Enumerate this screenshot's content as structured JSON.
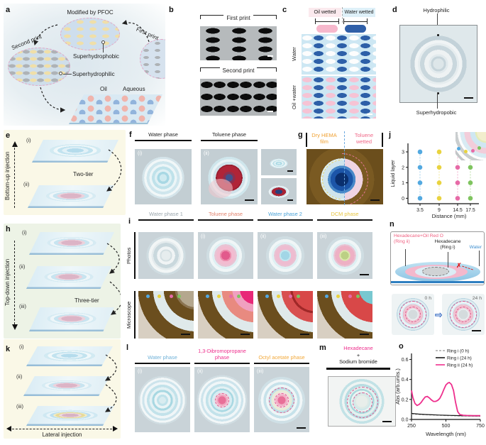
{
  "panel_letters": {
    "a": "a",
    "b": "b",
    "c": "c",
    "d": "d",
    "e": "e",
    "f": "f",
    "g": "g",
    "h": "h",
    "i": "i",
    "j": "j",
    "k": "k",
    "l": "l",
    "m": "m",
    "n": "n",
    "o": "o"
  },
  "steps": {
    "i": "(i)",
    "ii": "(ii)",
    "iii": "(iii)"
  },
  "colors": {
    "magenta": "#ee2f8d",
    "header_gray": "#9ba6ad",
    "header_salmon": "#e2836e",
    "header_blue": "#4ba3d8",
    "header_yellow": "#e7c53e",
    "hema_orange": "#f0a030",
    "toluene_pink": "#f06888",
    "water_blue": "#6fb1d8",
    "octyl_orange": "#f2a93b",
    "ring_pink": "#f06080",
    "n_water_blue": "#4090d0",
    "cross_red": "#e02020",
    "dot_blue": "#53a9e0",
    "dot_yellow": "#e9d33f",
    "dot_pink": "#e76aa7",
    "dot_green": "#7fc45f"
  },
  "a": {
    "modified": "Modified by PFOC",
    "first_print": "First print",
    "second_print": "Second print",
    "superhydrophobic": "Superhydrophobic",
    "superhydrophilic": "Superhydrophilic",
    "oil": "Oil",
    "aqueous": "Aqueous"
  },
  "b": {
    "first_print": "First print",
    "second_print": "Second print"
  },
  "c": {
    "oil_wetted": "Oil wetted",
    "water_wetted": "Water wetted",
    "water": "Water",
    "oil_water": "Oil +water"
  },
  "d": {
    "top": "Hydrophilic",
    "bottom": "Superhydropobic"
  },
  "e": {
    "axis": "Bottom-up injection",
    "tier": "Two-tier"
  },
  "f": {
    "water": "Water phase",
    "toluene": "Toluene phase"
  },
  "g": {
    "left": "Dry HEMA film",
    "right": "Toluene wetted"
  },
  "h": {
    "axis": "Top-down injection",
    "tier": "Three-tier"
  },
  "i": {
    "row1": "Photos",
    "row2": "Microscope",
    "headers": [
      "Water phase 1",
      "Toluene phase",
      "Water phase 2",
      "DCM phase"
    ]
  },
  "n": {
    "ring2_line1": "Hexadecane+Oil Red O",
    "ring2_line2": "(Ring ii)",
    "ring1_line1": "Hexadecane",
    "ring1_line2": "(Ring i)",
    "water": "Water",
    "t0": "0 h",
    "t24": "24 h",
    "blocked_mark": "✗"
  },
  "k": {
    "axis": "Lateral injection"
  },
  "l": {
    "headers": [
      "Water phase",
      "1,3-Dibromopropane phase",
      "Octyl acetate phase"
    ]
  },
  "m": {
    "line1": "Hexadecane",
    "line2": "+",
    "line3": "Sodium bromide"
  },
  "chart_data": [
    {
      "id": "j",
      "type": "scatter",
      "xlabel": "Distance (mm)",
      "ylabel": "Liquid layer",
      "x_ticks": [
        "3.5",
        "9",
        "14.5",
        "17.5"
      ],
      "y_ticks": [
        0,
        1,
        2,
        3
      ],
      "categories": [
        3.5,
        9,
        14.5,
        17.5
      ],
      "ylim": [
        -0.35,
        3.55
      ],
      "grid": false,
      "legend_position": "none",
      "series": [
        {
          "name": "3.5 mm",
          "color": "#53a9e0",
          "layers": [
            0,
            1,
            2,
            3
          ]
        },
        {
          "name": "9 mm",
          "color": "#e9d33f",
          "layers": [
            0,
            1,
            2,
            3
          ]
        },
        {
          "name": "14.5 mm",
          "color": "#e76aa7",
          "layers": [
            0,
            1,
            2,
            3
          ]
        },
        {
          "name": "17.5 mm",
          "color": "#7fc45f",
          "layers": [
            0,
            1,
            2,
            3
          ]
        }
      ]
    },
    {
      "id": "o",
      "type": "line",
      "xlabel": "Wavelength (nm)",
      "ylabel": "Abs (arb.units.)",
      "x_ticks": [
        250,
        500,
        750
      ],
      "y_ticks": [
        "0.0",
        "0.2",
        "0.4",
        "0.6"
      ],
      "xlim": [
        250,
        750
      ],
      "ylim": [
        0,
        0.66
      ],
      "grid": false,
      "legend_position": "top-right",
      "series": [
        {
          "name": "Ring i (0 h)",
          "color": "#a9a9a9",
          "dashed": true,
          "x": [
            250,
            300,
            350,
            400,
            450,
            500,
            550,
            600,
            650,
            700,
            750
          ],
          "y": [
            0.055,
            0.05,
            0.047,
            0.044,
            0.041,
            0.039,
            0.037,
            0.035,
            0.034,
            0.033,
            0.032
          ]
        },
        {
          "name": "Ring i (24 h)",
          "color": "#1a1a1a",
          "dashed": false,
          "x": [
            250,
            300,
            350,
            400,
            450,
            500,
            550,
            600,
            650,
            700,
            750
          ],
          "y": [
            0.06,
            0.054,
            0.05,
            0.047,
            0.044,
            0.042,
            0.04,
            0.038,
            0.036,
            0.035,
            0.034
          ]
        },
        {
          "name": "Ring ii (24 h)",
          "color": "#ee2f8d",
          "dashed": false,
          "x": [
            250,
            260,
            275,
            290,
            305,
            320,
            335,
            350,
            365,
            380,
            395,
            410,
            425,
            440,
            455,
            470,
            485,
            500,
            515,
            525,
            540,
            555,
            570,
            585,
            600,
            625,
            650,
            700,
            750
          ],
          "y": [
            0.29,
            0.22,
            0.16,
            0.14,
            0.15,
            0.17,
            0.2,
            0.225,
            0.23,
            0.215,
            0.195,
            0.18,
            0.18,
            0.19,
            0.21,
            0.25,
            0.3,
            0.345,
            0.365,
            0.37,
            0.35,
            0.29,
            0.17,
            0.08,
            0.05,
            0.042,
            0.04,
            0.038,
            0.038
          ]
        }
      ]
    }
  ]
}
